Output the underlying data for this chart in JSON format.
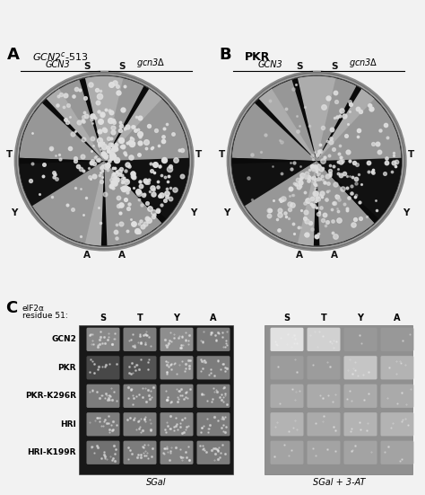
{
  "fig_width": 4.74,
  "fig_height": 5.51,
  "dpi": 100,
  "background_color": "#f0f0f0",
  "panel_A_label": "A",
  "panel_B_label": "B",
  "panel_C_label": "C",
  "panel_C_header_line1": "eIF2α",
  "panel_C_header_line2": "residue 51:",
  "panel_C_cols": [
    "S",
    "T",
    "Y",
    "A"
  ],
  "panel_C_xlabel_left": "SGal",
  "panel_C_xlabel_right": "SGal + 3-AT",
  "panel_C_rows": [
    "GCN2",
    "PKR",
    "PKR-K296R",
    "HRI",
    "HRI-K199R"
  ],
  "gel_left_bg": "#111111",
  "gel_right_bg": "#999999",
  "left_spot_gray": {
    "GCN2": [
      0.58,
      0.52,
      0.6,
      0.52
    ],
    "PKR": [
      0.3,
      0.35,
      0.58,
      0.52
    ],
    "PKR-K296R": [
      0.52,
      0.52,
      0.55,
      0.52
    ],
    "HRI": [
      0.52,
      0.52,
      0.55,
      0.52
    ],
    "HRI-K199R": [
      0.48,
      0.52,
      0.55,
      0.52
    ]
  },
  "right_spot_gray": {
    "GCN2": [
      0.92,
      0.85,
      0.6,
      0.6
    ],
    "PKR": [
      0.62,
      0.62,
      0.8,
      0.72
    ],
    "PKR-K296R": [
      0.68,
      0.68,
      0.68,
      0.68
    ],
    "HRI": [
      0.72,
      0.68,
      0.72,
      0.72
    ],
    "HRI-K199R": [
      0.65,
      0.65,
      0.65,
      0.65
    ]
  }
}
